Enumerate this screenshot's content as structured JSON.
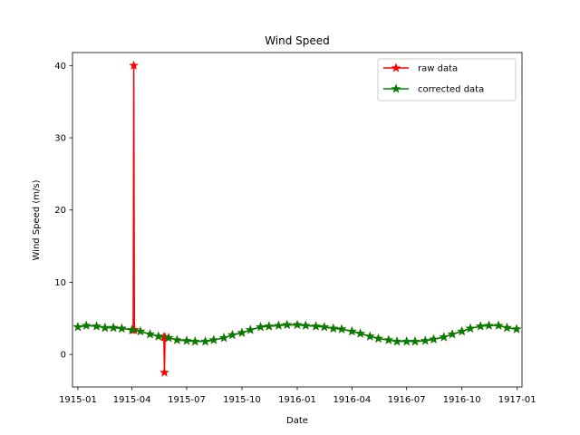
{
  "chart_data": {
    "type": "line",
    "title": "Wind Speed",
    "xlabel": "Date",
    "ylabel": "Wind Speed (m/s)",
    "x_axis_type": "date",
    "xlim": [
      "1914-12-23",
      "1917-01-09"
    ],
    "ylim": [
      -4.5,
      41.8
    ],
    "x_ticks": [
      "1915-01",
      "1915-04",
      "1915-07",
      "1915-10",
      "1916-01",
      "1916-04",
      "1916-07",
      "1916-10",
      "1917-01"
    ],
    "y_ticks": [
      0,
      10,
      20,
      30,
      40
    ],
    "grid": false,
    "legend_position": "top-right",
    "marker": "star",
    "series": [
      {
        "name": "raw data",
        "color": "#ff0000",
        "x": [
          "1915-01-01",
          "1915-01-15",
          "1915-02-01",
          "1915-02-15",
          "1915-03-01",
          "1915-03-15",
          "1915-04-01",
          "1915-04-03",
          "1915-04-04",
          "1915-04-05",
          "1915-04-15",
          "1915-05-01",
          "1915-05-15",
          "1915-05-24",
          "1915-05-25",
          "1915-05-26",
          "1915-06-01",
          "1915-06-15",
          "1915-07-01",
          "1915-07-15",
          "1915-08-01",
          "1915-08-15",
          "1915-09-01",
          "1915-09-15",
          "1915-10-01",
          "1915-10-15",
          "1915-11-01",
          "1915-11-15",
          "1915-12-01",
          "1915-12-15",
          "1916-01-01",
          "1916-01-15",
          "1916-02-01",
          "1916-02-15",
          "1916-03-01",
          "1916-03-15",
          "1916-04-01",
          "1916-04-15",
          "1916-05-01",
          "1916-05-15",
          "1916-06-01",
          "1916-06-15",
          "1916-07-01",
          "1916-07-15",
          "1916-08-01",
          "1916-08-15",
          "1916-09-01",
          "1916-09-15",
          "1916-10-01",
          "1916-10-15",
          "1916-11-01",
          "1916-11-15",
          "1916-12-01",
          "1916-12-15",
          "1916-12-31"
        ],
        "y": [
          3.8,
          4.0,
          3.9,
          3.7,
          3.7,
          3.6,
          3.4,
          3.4,
          40.0,
          3.4,
          3.2,
          2.8,
          2.5,
          2.4,
          -2.5,
          2.4,
          2.3,
          2.0,
          1.9,
          1.8,
          1.8,
          2.0,
          2.3,
          2.7,
          3.0,
          3.4,
          3.8,
          3.9,
          4.0,
          4.1,
          4.1,
          4.0,
          3.9,
          3.8,
          3.6,
          3.5,
          3.2,
          2.9,
          2.5,
          2.2,
          2.0,
          1.8,
          1.8,
          1.8,
          1.9,
          2.1,
          2.4,
          2.8,
          3.2,
          3.6,
          3.9,
          4.0,
          4.0,
          3.7,
          3.5
        ]
      },
      {
        "name": "corrected data",
        "color": "#008000",
        "x": [
          "1915-01-01",
          "1915-01-15",
          "1915-02-01",
          "1915-02-15",
          "1915-03-01",
          "1915-03-15",
          "1915-04-01",
          "1915-04-15",
          "1915-05-01",
          "1915-05-15",
          "1915-06-01",
          "1915-06-15",
          "1915-07-01",
          "1915-07-15",
          "1915-08-01",
          "1915-08-15",
          "1915-09-01",
          "1915-09-15",
          "1915-10-01",
          "1915-10-15",
          "1915-11-01",
          "1915-11-15",
          "1915-12-01",
          "1915-12-15",
          "1916-01-01",
          "1916-01-15",
          "1916-02-01",
          "1916-02-15",
          "1916-03-01",
          "1916-03-15",
          "1916-04-01",
          "1916-04-15",
          "1916-05-01",
          "1916-05-15",
          "1916-06-01",
          "1916-06-15",
          "1916-07-01",
          "1916-07-15",
          "1916-08-01",
          "1916-08-15",
          "1916-09-01",
          "1916-09-15",
          "1916-10-01",
          "1916-10-15",
          "1916-11-01",
          "1916-11-15",
          "1916-12-01",
          "1916-12-15",
          "1916-12-31"
        ],
        "y": [
          3.8,
          4.0,
          3.9,
          3.7,
          3.7,
          3.6,
          3.4,
          3.2,
          2.8,
          2.5,
          2.3,
          2.0,
          1.9,
          1.8,
          1.8,
          2.0,
          2.3,
          2.7,
          3.0,
          3.4,
          3.8,
          3.9,
          4.0,
          4.1,
          4.1,
          4.0,
          3.9,
          3.8,
          3.6,
          3.5,
          3.2,
          2.9,
          2.5,
          2.2,
          2.0,
          1.8,
          1.8,
          1.8,
          1.9,
          2.1,
          2.4,
          2.8,
          3.2,
          3.6,
          3.9,
          4.0,
          4.0,
          3.7,
          3.5
        ]
      }
    ]
  }
}
